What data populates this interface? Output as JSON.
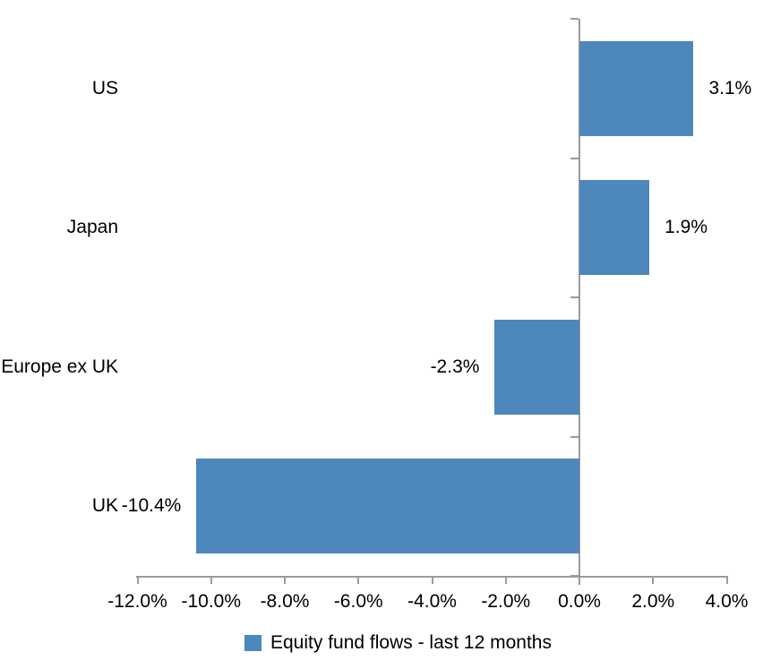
{
  "chart_data": {
    "type": "bar",
    "orientation": "horizontal",
    "title": "",
    "xlabel": "",
    "ylabel": "",
    "categories": [
      "US",
      "Japan",
      "Europe ex UK",
      "UK"
    ],
    "series": [
      {
        "name": "Equity fund flows - last 12 months",
        "values": [
          3.1,
          1.9,
          -2.3,
          -10.4
        ],
        "value_labels": [
          "3.1%",
          "1.9%",
          "-2.3%",
          "-10.4%"
        ]
      }
    ],
    "xlim": [
      -12.0,
      4.0
    ],
    "x_tick_values": [
      -12,
      -10,
      -8,
      -6,
      -4,
      -2,
      0,
      2,
      4
    ],
    "x_tick_labels": [
      "-12.0%",
      "-10.0%",
      "-8.0%",
      "-6.0%",
      "-4.0%",
      "-2.0%",
      "0.0%",
      "2.0%",
      "4.0%"
    ],
    "grid": false,
    "legend_position": "bottom",
    "colors": {
      "bar": "#4E87BC",
      "axis_line": "#9B9B9B",
      "text": "#000000",
      "background": "#FFFFFF"
    }
  },
  "legend": {
    "label": "Equity fund flows - last 12 months",
    "marker_color": "#4E87BC"
  }
}
